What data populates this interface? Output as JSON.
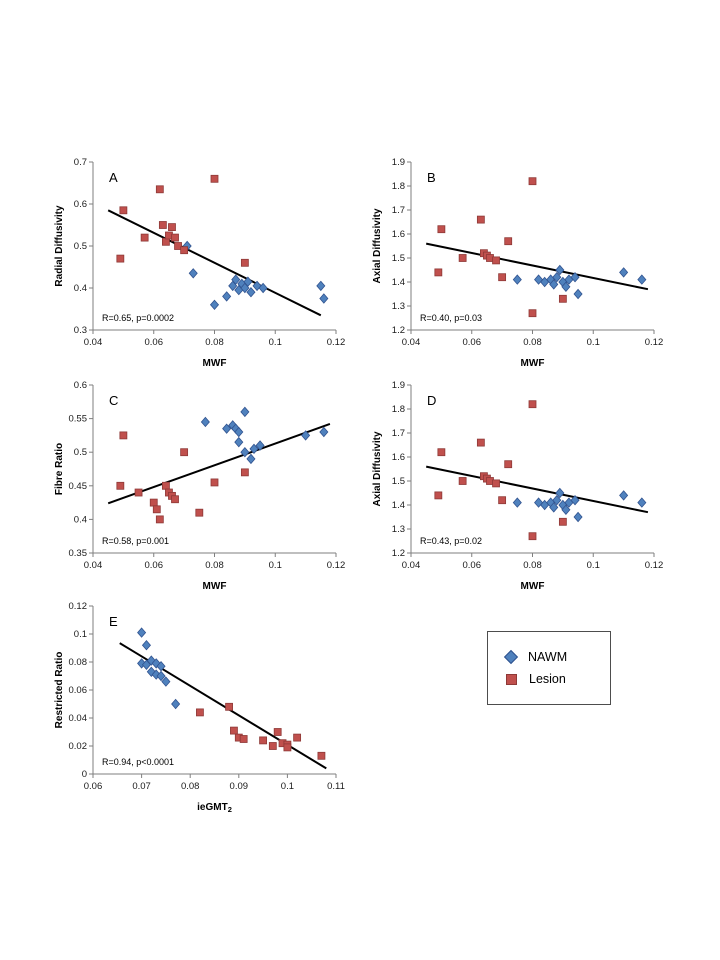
{
  "figure": {
    "description": "Five scatter plots (A-E) correlating MWF / ieGMT2 with diffusion and ratio metrics in NAWM and Lesion tissue"
  },
  "legend": {
    "items": [
      {
        "label": "NAWM",
        "marker": "diamond",
        "color": "#4F81BD",
        "edge": "#31538f"
      },
      {
        "label": "Lesion",
        "marker": "square",
        "color": "#C0504D",
        "edge": "#8e3937"
      }
    ]
  },
  "chart_data": [
    {
      "type": "scatter",
      "panel": "A",
      "xlabel": "MWF",
      "ylabel": "Radial Diffusivity",
      "xlim": [
        0.04,
        0.12
      ],
      "ylim": [
        0.3,
        0.7
      ],
      "xticks": [
        0.04,
        0.06,
        0.08,
        0.1,
        0.12
      ],
      "xtick_labels": [
        "0.04",
        "0.06",
        "0.08",
        "0.1",
        "0.12"
      ],
      "yticks": [
        0.3,
        0.4,
        0.5,
        0.6,
        0.7
      ],
      "ytick_labels": [
        "0.3",
        "0.4",
        "0.5",
        "0.6",
        "0.7"
      ],
      "annotation": "R=0.65, p=0.0002",
      "trendline": {
        "x": [
          0.045,
          0.115
        ],
        "y": [
          0.585,
          0.335
        ]
      },
      "grid": false,
      "series": [
        {
          "name": "NAWM",
          "marker": "diamond",
          "color": "#4F81BD",
          "edge": "#31538f",
          "points": [
            [
              0.071,
              0.5
            ],
            [
              0.073,
              0.435
            ],
            [
              0.08,
              0.36
            ],
            [
              0.084,
              0.38
            ],
            [
              0.086,
              0.405
            ],
            [
              0.087,
              0.42
            ],
            [
              0.088,
              0.395
            ],
            [
              0.089,
              0.41
            ],
            [
              0.09,
              0.4
            ],
            [
              0.091,
              0.415
            ],
            [
              0.092,
              0.39
            ],
            [
              0.094,
              0.405
            ],
            [
              0.096,
              0.4
            ],
            [
              0.115,
              0.405
            ],
            [
              0.116,
              0.375
            ]
          ]
        },
        {
          "name": "Lesion",
          "marker": "square",
          "color": "#C0504D",
          "edge": "#8e3937",
          "points": [
            [
              0.049,
              0.47
            ],
            [
              0.05,
              0.585
            ],
            [
              0.057,
              0.52
            ],
            [
              0.062,
              0.635
            ],
            [
              0.063,
              0.55
            ],
            [
              0.064,
              0.51
            ],
            [
              0.065,
              0.525
            ],
            [
              0.066,
              0.545
            ],
            [
              0.067,
              0.52
            ],
            [
              0.068,
              0.5
            ],
            [
              0.07,
              0.49
            ],
            [
              0.08,
              0.66
            ],
            [
              0.09,
              0.46
            ]
          ]
        }
      ]
    },
    {
      "type": "scatter",
      "panel": "B",
      "xlabel": "MWF",
      "ylabel": "Axial Diffusivity",
      "xlim": [
        0.04,
        0.12
      ],
      "ylim": [
        1.2,
        1.9
      ],
      "xticks": [
        0.04,
        0.06,
        0.08,
        0.1,
        0.12
      ],
      "xtick_labels": [
        "0.04",
        "0.06",
        "0.08",
        "0.1",
        "0.12"
      ],
      "yticks": [
        1.2,
        1.3,
        1.4,
        1.5,
        1.6,
        1.7,
        1.8,
        1.9
      ],
      "ytick_labels": [
        "1.2",
        "1.3",
        "1.4",
        "1.5",
        "1.6",
        "1.7",
        "1.8",
        "1.9"
      ],
      "annotation": "R=0.40, p=0.03",
      "trendline": {
        "x": [
          0.045,
          0.118
        ],
        "y": [
          1.56,
          1.37
        ]
      },
      "grid": false,
      "series": [
        {
          "name": "NAWM",
          "marker": "diamond",
          "color": "#4F81BD",
          "edge": "#31538f",
          "points": [
            [
              0.075,
              1.41
            ],
            [
              0.082,
              1.41
            ],
            [
              0.084,
              1.4
            ],
            [
              0.086,
              1.41
            ],
            [
              0.087,
              1.39
            ],
            [
              0.088,
              1.42
            ],
            [
              0.089,
              1.45
            ],
            [
              0.09,
              1.4
            ],
            [
              0.091,
              1.38
            ],
            [
              0.092,
              1.41
            ],
            [
              0.094,
              1.42
            ],
            [
              0.095,
              1.35
            ],
            [
              0.11,
              1.44
            ],
            [
              0.116,
              1.41
            ]
          ]
        },
        {
          "name": "Lesion",
          "marker": "square",
          "color": "#C0504D",
          "edge": "#8e3937",
          "points": [
            [
              0.049,
              1.44
            ],
            [
              0.05,
              1.62
            ],
            [
              0.057,
              1.5
            ],
            [
              0.063,
              1.66
            ],
            [
              0.064,
              1.52
            ],
            [
              0.065,
              1.51
            ],
            [
              0.066,
              1.5
            ],
            [
              0.068,
              1.49
            ],
            [
              0.07,
              1.42
            ],
            [
              0.072,
              1.57
            ],
            [
              0.08,
              1.82
            ],
            [
              0.08,
              1.27
            ],
            [
              0.09,
              1.33
            ]
          ]
        }
      ]
    },
    {
      "type": "scatter",
      "panel": "C",
      "xlabel": "MWF",
      "ylabel": "Fibre Ratio",
      "xlim": [
        0.04,
        0.12
      ],
      "ylim": [
        0.35,
        0.6
      ],
      "xticks": [
        0.04,
        0.06,
        0.08,
        0.1,
        0.12
      ],
      "xtick_labels": [
        "0.04",
        "0.06",
        "0.08",
        "0.1",
        "0.12"
      ],
      "yticks": [
        0.35,
        0.4,
        0.45,
        0.5,
        0.55,
        0.6
      ],
      "ytick_labels": [
        "0.35",
        "0.4",
        "0.45",
        "0.5",
        "0.55",
        "0.6"
      ],
      "annotation": "R=0.58, p=0.001",
      "trendline": {
        "x": [
          0.045,
          0.118
        ],
        "y": [
          0.424,
          0.542
        ]
      },
      "grid": false,
      "series": [
        {
          "name": "NAWM",
          "marker": "diamond",
          "color": "#4F81BD",
          "edge": "#31538f",
          "points": [
            [
              0.077,
              0.545
            ],
            [
              0.084,
              0.535
            ],
            [
              0.086,
              0.54
            ],
            [
              0.087,
              0.535
            ],
            [
              0.088,
              0.53
            ],
            [
              0.088,
              0.515
            ],
            [
              0.09,
              0.56
            ],
            [
              0.09,
              0.5
            ],
            [
              0.092,
              0.49
            ],
            [
              0.093,
              0.505
            ],
            [
              0.095,
              0.51
            ],
            [
              0.11,
              0.525
            ],
            [
              0.116,
              0.53
            ]
          ]
        },
        {
          "name": "Lesion",
          "marker": "square",
          "color": "#C0504D",
          "edge": "#8e3937",
          "points": [
            [
              0.049,
              0.45
            ],
            [
              0.05,
              0.525
            ],
            [
              0.055,
              0.44
            ],
            [
              0.06,
              0.425
            ],
            [
              0.061,
              0.415
            ],
            [
              0.062,
              0.4
            ],
            [
              0.064,
              0.45
            ],
            [
              0.065,
              0.44
            ],
            [
              0.066,
              0.435
            ],
            [
              0.067,
              0.43
            ],
            [
              0.07,
              0.5
            ],
            [
              0.075,
              0.41
            ],
            [
              0.08,
              0.455
            ],
            [
              0.09,
              0.47
            ]
          ]
        }
      ]
    },
    {
      "type": "scatter",
      "panel": "D",
      "xlabel": "MWF",
      "ylabel": "Axial Diffusivity",
      "xlim": [
        0.04,
        0.12
      ],
      "ylim": [
        1.2,
        1.9
      ],
      "xticks": [
        0.04,
        0.06,
        0.08,
        0.1,
        0.12
      ],
      "xtick_labels": [
        "0.04",
        "0.06",
        "0.08",
        "0.1",
        "0.12"
      ],
      "yticks": [
        1.2,
        1.3,
        1.4,
        1.5,
        1.6,
        1.7,
        1.8,
        1.9
      ],
      "ytick_labels": [
        "1.2",
        "1.3",
        "1.4",
        "1.5",
        "1.6",
        "1.7",
        "1.8",
        "1.9"
      ],
      "annotation": "R=0.43, p=0.02",
      "trendline": {
        "x": [
          0.045,
          0.118
        ],
        "y": [
          1.56,
          1.37
        ]
      },
      "grid": false,
      "series": [
        {
          "name": "NAWM",
          "marker": "diamond",
          "color": "#4F81BD",
          "edge": "#31538f",
          "points": [
            [
              0.075,
              1.41
            ],
            [
              0.082,
              1.41
            ],
            [
              0.084,
              1.4
            ],
            [
              0.086,
              1.41
            ],
            [
              0.087,
              1.39
            ],
            [
              0.088,
              1.42
            ],
            [
              0.089,
              1.45
            ],
            [
              0.09,
              1.4
            ],
            [
              0.091,
              1.38
            ],
            [
              0.092,
              1.41
            ],
            [
              0.094,
              1.42
            ],
            [
              0.095,
              1.35
            ],
            [
              0.11,
              1.44
            ],
            [
              0.116,
              1.41
            ]
          ]
        },
        {
          "name": "Lesion",
          "marker": "square",
          "color": "#C0504D",
          "edge": "#8e3937",
          "points": [
            [
              0.049,
              1.44
            ],
            [
              0.05,
              1.62
            ],
            [
              0.057,
              1.5
            ],
            [
              0.063,
              1.66
            ],
            [
              0.064,
              1.52
            ],
            [
              0.065,
              1.51
            ],
            [
              0.066,
              1.5
            ],
            [
              0.068,
              1.49
            ],
            [
              0.07,
              1.42
            ],
            [
              0.072,
              1.57
            ],
            [
              0.08,
              1.82
            ],
            [
              0.08,
              1.27
            ],
            [
              0.09,
              1.33
            ]
          ]
        }
      ]
    },
    {
      "type": "scatter",
      "panel": "E",
      "xlabel": "ieGMT",
      "xlabel_sub": "2",
      "ylabel": "Restricted Ratio",
      "xlim": [
        0.06,
        0.11
      ],
      "ylim": [
        0,
        0.12
      ],
      "xticks": [
        0.06,
        0.07,
        0.08,
        0.09,
        0.1,
        0.11
      ],
      "xtick_labels": [
        "0.06",
        "0.07",
        "0.08",
        "0.09",
        "0.1",
        "0.11"
      ],
      "yticks": [
        0,
        0.02,
        0.04,
        0.06,
        0.08,
        0.1,
        0.12
      ],
      "ytick_labels": [
        "0",
        "0.02",
        "0.04",
        "0.06",
        "0.08",
        "0.1",
        "0.12"
      ],
      "annotation": "R=0.94, p<0.0001",
      "trendline": {
        "x": [
          0.0655,
          0.108
        ],
        "y": [
          0.0935,
          0.004
        ]
      },
      "grid": false,
      "series": [
        {
          "name": "NAWM",
          "marker": "diamond",
          "color": "#4F81BD",
          "edge": "#31538f",
          "points": [
            [
              0.07,
              0.101
            ],
            [
              0.07,
              0.079
            ],
            [
              0.071,
              0.092
            ],
            [
              0.071,
              0.078
            ],
            [
              0.072,
              0.081
            ],
            [
              0.072,
              0.073
            ],
            [
              0.073,
              0.079
            ],
            [
              0.073,
              0.071
            ],
            [
              0.074,
              0.077
            ],
            [
              0.074,
              0.07
            ],
            [
              0.075,
              0.066
            ],
            [
              0.077,
              0.05
            ]
          ]
        },
        {
          "name": "Lesion",
          "marker": "square",
          "color": "#C0504D",
          "edge": "#8e3937",
          "points": [
            [
              0.082,
              0.044
            ],
            [
              0.088,
              0.048
            ],
            [
              0.089,
              0.031
            ],
            [
              0.09,
              0.026
            ],
            [
              0.091,
              0.025
            ],
            [
              0.095,
              0.024
            ],
            [
              0.097,
              0.02
            ],
            [
              0.098,
              0.03
            ],
            [
              0.099,
              0.022
            ],
            [
              0.1,
              0.021
            ],
            [
              0.1,
              0.019
            ],
            [
              0.102,
              0.026
            ],
            [
              0.107,
              0.013
            ]
          ]
        }
      ]
    }
  ]
}
